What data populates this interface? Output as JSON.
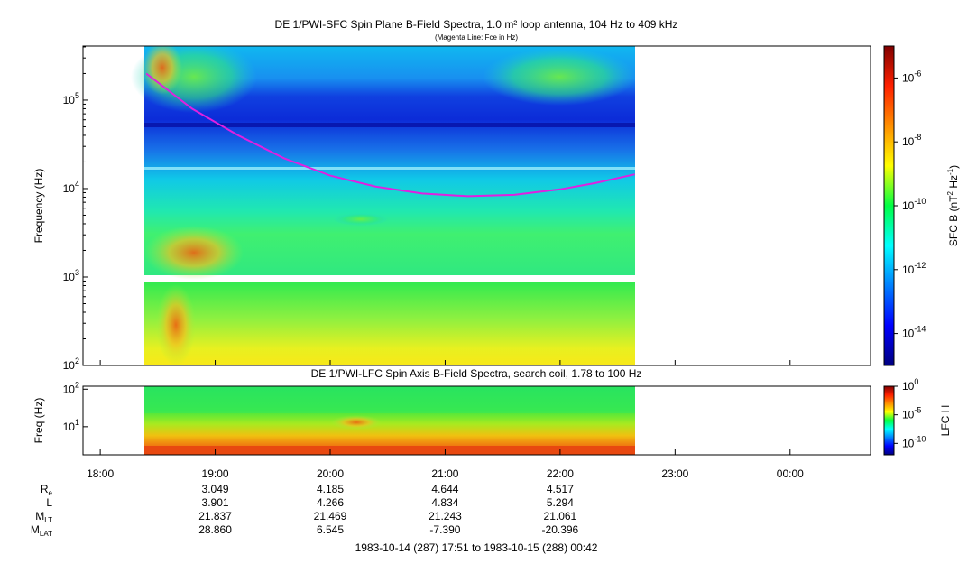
{
  "chart_data": [
    {
      "type": "heatmap",
      "title": "DE 1/PWI-SFC  Spin Plane B-Field Spectra, 1.0 m² loop antenna, 104 Hz to 409 kHz",
      "subtitle": "(Magenta Line: Fce in Hz)",
      "ylabel": "Frequency (Hz)",
      "yscale": "log",
      "ylim": [
        100,
        409000
      ],
      "yticks": [
        {
          "value": 100,
          "base": "10",
          "exp": "2"
        },
        {
          "value": 1000,
          "base": "10",
          "exp": "3"
        },
        {
          "value": 10000,
          "base": "10",
          "exp": "4"
        },
        {
          "value": 100000,
          "base": "10",
          "exp": "5"
        }
      ],
      "colorbar": {
        "label_pre": "SFC B (nT",
        "label_exp1": "2",
        "label_mid": " Hz",
        "label_exp2": "-1",
        "label_post": ")",
        "scale": "log",
        "range": [
          1e-15,
          1e-05
        ],
        "ticks": [
          {
            "value": 1e-06,
            "base": "10",
            "exp": "-6"
          },
          {
            "value": 1e-08,
            "base": "10",
            "exp": "-8"
          },
          {
            "value": 1e-10,
            "base": "10",
            "exp": "-10"
          },
          {
            "value": 1e-12,
            "base": "10",
            "exp": "-12"
          },
          {
            "value": 1e-14,
            "base": "10",
            "exp": "-14"
          }
        ]
      },
      "data_time_range_hours": [
        18.4,
        22.65
      ],
      "fce_line": {
        "name": "Fce in Hz",
        "color": "#e020e0",
        "x_hours": [
          18.4,
          18.8,
          19.2,
          19.6,
          20.0,
          20.4,
          20.8,
          21.2,
          21.6,
          22.0,
          22.3,
          22.65
        ],
        "y_hz": [
          200000,
          80000,
          40000,
          22000,
          14000,
          10500,
          8800,
          8200,
          8500,
          9800,
          11500,
          14500
        ]
      }
    },
    {
      "type": "heatmap",
      "title": "DE 1/PWI-LFC  Spin Axis B-Field Spectra, search coil, 1.78 to 100 Hz",
      "ylabel": "Freq (Hz)",
      "yscale": "log",
      "ylim": [
        1.78,
        120
      ],
      "yticks": [
        {
          "value": 10,
          "base": "10",
          "exp": "1"
        },
        {
          "value": 100,
          "base": "10",
          "exp": "2"
        }
      ],
      "colorbar": {
        "label": "LFC H",
        "scale": "log",
        "range": [
          1e-12,
          1
        ],
        "ticks": [
          {
            "value": 1,
            "base": "10",
            "exp": "0"
          },
          {
            "value": 1e-05,
            "base": "10",
            "exp": "-5"
          },
          {
            "value": 1e-10,
            "base": "10",
            "exp": "-10"
          }
        ]
      },
      "data_time_range_hours": [
        18.4,
        22.65
      ]
    }
  ],
  "x_axis": {
    "range_hours": [
      17.85,
      24.7
    ],
    "ticks": [
      {
        "value": 18,
        "label": "18:00"
      },
      {
        "value": 19,
        "label": "19:00"
      },
      {
        "value": 20,
        "label": "20:00"
      },
      {
        "value": 21,
        "label": "21:00"
      },
      {
        "value": 22,
        "label": "22:00"
      },
      {
        "value": 23,
        "label": "23:00"
      },
      {
        "value": 24,
        "label": "00:00"
      }
    ]
  },
  "ephemeris": {
    "rows": [
      {
        "label": "R",
        "sub": "e",
        "values": [
          "3.049",
          "4.185",
          "4.644",
          "4.517"
        ]
      },
      {
        "label": "L",
        "sub": "",
        "values": [
          "3.901",
          "4.266",
          "4.834",
          "5.294"
        ]
      },
      {
        "label": "M",
        "sub": "LT",
        "values": [
          "21.837",
          "21.469",
          "21.243",
          "21.061"
        ]
      },
      {
        "label": "M",
        "sub": "LAT",
        "values": [
          "28.860",
          "6.545",
          "-7.390",
          "-20.396"
        ]
      }
    ],
    "value_hours": [
      19,
      20,
      21,
      22
    ]
  },
  "footer": "1983-10-14 (287) 17:51 to 1983-10-15 (288) 00:42"
}
